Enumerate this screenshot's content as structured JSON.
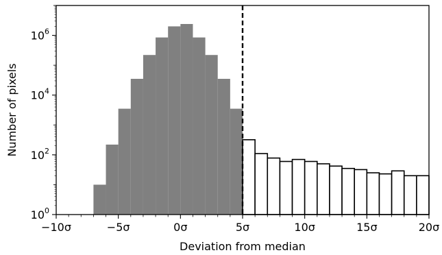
{
  "chart_data": {
    "type": "bar",
    "title": "",
    "xlabel": "Deviation from median",
    "ylabel": "Number of pixels",
    "x_unit": "σ",
    "xlim": [
      -10,
      20
    ],
    "ylim_log10": [
      0,
      7
    ],
    "y_scale": "log",
    "grid": false,
    "bin_width": 1,
    "x_ticks": [
      {
        "value": -10,
        "label": "−10σ"
      },
      {
        "value": -5,
        "label": "−5σ"
      },
      {
        "value": 0,
        "label": "0σ"
      },
      {
        "value": 5,
        "label": "5σ"
      },
      {
        "value": 10,
        "label": "10σ"
      },
      {
        "value": 15,
        "label": "15σ"
      },
      {
        "value": 20,
        "label": "20σ"
      }
    ],
    "y_ticks": [
      {
        "exp": 0,
        "base": "10",
        "sup": "0"
      },
      {
        "exp": 2,
        "base": "10",
        "sup": "2"
      },
      {
        "exp": 4,
        "base": "10",
        "sup": "4"
      },
      {
        "exp": 6,
        "base": "10",
        "sup": "6"
      }
    ],
    "threshold": {
      "x": 5,
      "style": "dashed"
    },
    "series": [
      {
        "style": "filled",
        "color": "#808080",
        "bins": [
          {
            "x0": -7,
            "count": 10
          },
          {
            "x0": -6,
            "count": 220
          },
          {
            "x0": -5,
            "count": 3500
          },
          {
            "x0": -4,
            "count": 35000
          },
          {
            "x0": -3,
            "count": 220000
          },
          {
            "x0": -2,
            "count": 850000
          },
          {
            "x0": -1,
            "count": 2000000
          },
          {
            "x0": 0,
            "count": 2400000
          },
          {
            "x0": 1,
            "count": 850000
          },
          {
            "x0": 2,
            "count": 220000
          },
          {
            "x0": 3,
            "count": 35000
          },
          {
            "x0": 4,
            "count": 3500
          }
        ]
      },
      {
        "style": "outline",
        "color": "#000000",
        "bins": [
          {
            "x0": 5,
            "count": 320
          },
          {
            "x0": 6,
            "count": 110
          },
          {
            "x0": 7,
            "count": 78
          },
          {
            "x0": 8,
            "count": 60
          },
          {
            "x0": 9,
            "count": 70
          },
          {
            "x0": 10,
            "count": 60
          },
          {
            "x0": 11,
            "count": 50
          },
          {
            "x0": 12,
            "count": 42
          },
          {
            "x0": 13,
            "count": 35
          },
          {
            "x0": 14,
            "count": 32
          },
          {
            "x0": 15,
            "count": 25
          },
          {
            "x0": 16,
            "count": 23
          },
          {
            "x0": 17,
            "count": 29
          },
          {
            "x0": 18,
            "count": 20
          },
          {
            "x0": 19,
            "count": 20
          }
        ]
      }
    ]
  }
}
